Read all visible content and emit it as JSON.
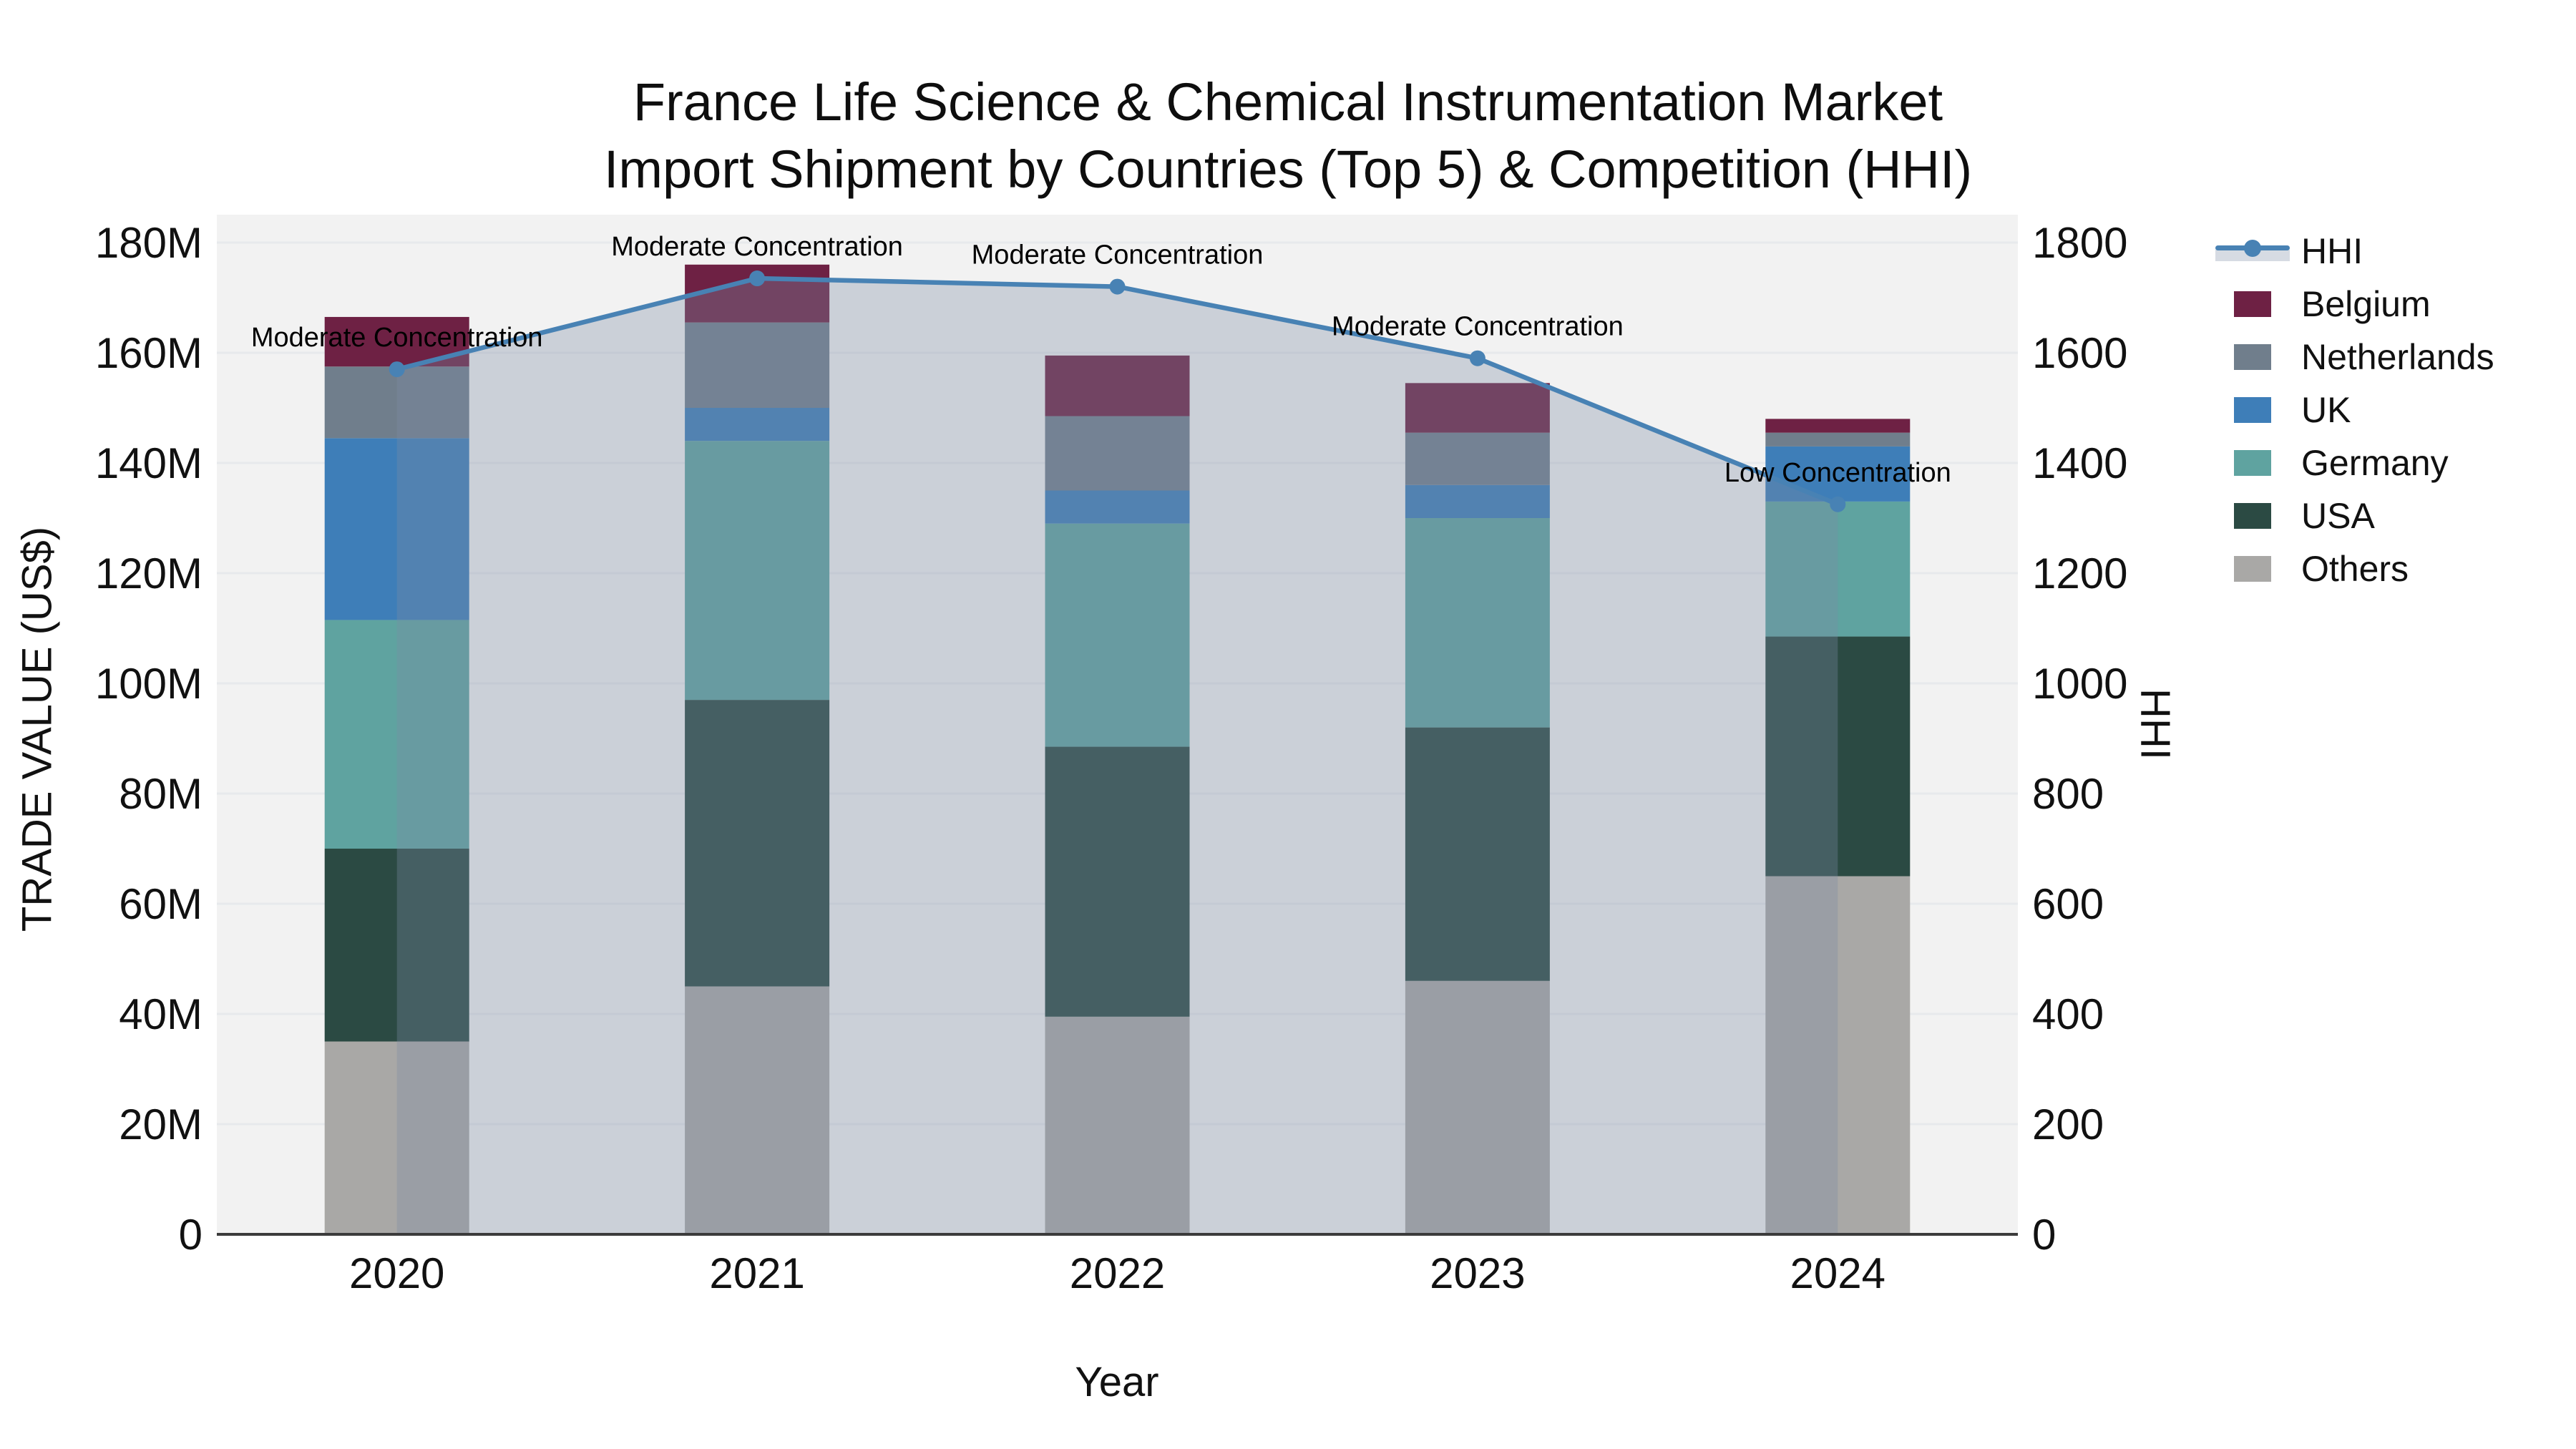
{
  "title": {
    "line1": "France Life Science & Chemical Instrumentation Market",
    "line2": "Import Shipment by Countries (Top 5) & Competition (HHI)"
  },
  "axes": {
    "x": {
      "title": "Year",
      "categories": [
        "2020",
        "2021",
        "2022",
        "2023",
        "2024"
      ]
    },
    "y_left": {
      "title": "TRADE VALUE (US$)",
      "tick_values": [
        0,
        20,
        40,
        60,
        80,
        100,
        120,
        140,
        160,
        180
      ],
      "tick_labels": [
        "0",
        "20M",
        "40M",
        "60M",
        "80M",
        "100M",
        "120M",
        "140M",
        "160M",
        "180M"
      ],
      "range": [
        0,
        180
      ]
    },
    "y_right": {
      "title": "HHI",
      "tick_values": [
        0,
        200,
        400,
        600,
        800,
        1000,
        1200,
        1400,
        1600,
        1800
      ],
      "tick_labels": [
        "0",
        "200",
        "400",
        "600",
        "800",
        "1000",
        "1200",
        "1400",
        "1600",
        "1800"
      ],
      "range": [
        0,
        1800
      ]
    }
  },
  "legend": {
    "items": [
      {
        "label": "HHI",
        "kind": "line",
        "color": "#4882b4"
      },
      {
        "label": "Belgium",
        "kind": "swatch",
        "color": "#6e2144"
      },
      {
        "label": "Netherlands",
        "kind": "swatch",
        "color": "#707e8c"
      },
      {
        "label": "UK",
        "kind": "swatch",
        "color": "#3e7eb8"
      },
      {
        "label": "Germany",
        "kind": "swatch",
        "color": "#5fa3a0"
      },
      {
        "label": "USA",
        "kind": "swatch",
        "color": "#2b4a43"
      },
      {
        "label": "Others",
        "kind": "swatch",
        "color": "#a9a8a6"
      }
    ]
  },
  "colors": {
    "plot_background": "#f2f2f2",
    "gridline": "#e7e9ec",
    "axis_line": "#3b3b3b",
    "hhi_line": "#4882b4",
    "hhi_area_fill": "rgba(125,140,165,0.33)",
    "annotation_text": "#000000"
  },
  "chart_data": {
    "type": "combo-stacked-bar-line",
    "title": "France Life Science & Chemical Instrumentation Market — Import Shipment by Countries (Top 5) & Competition (HHI)",
    "categories": [
      "2020",
      "2021",
      "2022",
      "2023",
      "2024"
    ],
    "bar_unit": "M US$",
    "bar_stack_order_bottom_to_top": [
      "Others",
      "USA",
      "Germany",
      "UK",
      "Netherlands",
      "Belgium"
    ],
    "series": [
      {
        "name": "Others",
        "color": "#a9a8a6",
        "values": [
          35.0,
          45.0,
          39.5,
          46.0,
          65.0
        ]
      },
      {
        "name": "USA",
        "color": "#2b4a43",
        "values": [
          35.0,
          52.0,
          49.0,
          46.0,
          43.5
        ]
      },
      {
        "name": "Germany",
        "color": "#5fa3a0",
        "values": [
          41.5,
          47.0,
          40.5,
          38.0,
          24.5
        ]
      },
      {
        "name": "UK",
        "color": "#3e7eb8",
        "values": [
          33.0,
          6.0,
          6.0,
          6.0,
          10.0
        ]
      },
      {
        "name": "Netherlands",
        "color": "#707e8c",
        "values": [
          13.0,
          15.5,
          13.5,
          9.5,
          2.5
        ]
      },
      {
        "name": "Belgium",
        "color": "#6e2144",
        "values": [
          9.0,
          10.5,
          11.0,
          9.0,
          2.5
        ]
      }
    ],
    "bar_totals": [
      166.5,
      176.0,
      159.5,
      154.5,
      148.0
    ],
    "line_series": {
      "name": "HHI",
      "values": [
        1570,
        1735,
        1720,
        1590,
        1325
      ],
      "color": "#4882b4",
      "area_fill": "rgba(125,140,165,0.33)",
      "axis": "right"
    },
    "annotations": [
      {
        "category": "2020",
        "text": "Moderate Concentration"
      },
      {
        "category": "2021",
        "text": "Moderate Concentration"
      },
      {
        "category": "2022",
        "text": "Moderate Concentration"
      },
      {
        "category": "2023",
        "text": "Moderate Concentration"
      },
      {
        "category": "2024",
        "text": "Low Concentration"
      }
    ],
    "xlabel": "Year",
    "ylabel_left": "TRADE VALUE (US$)",
    "ylabel_right": "HHI",
    "ylim_left": [
      0,
      180
    ],
    "ylim_right": [
      0,
      1800
    ],
    "grid": true,
    "legend_position": "right"
  }
}
